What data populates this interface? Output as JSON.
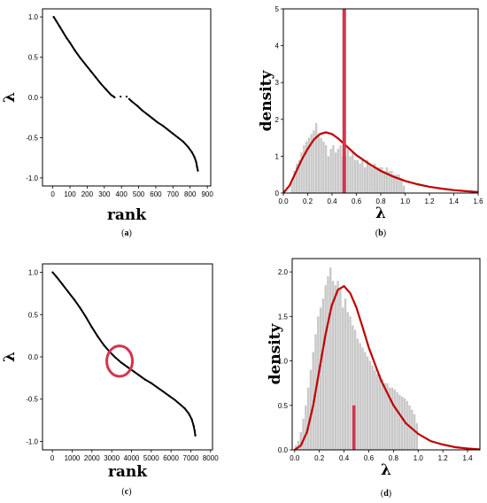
{
  "chart_data": [
    {
      "id": "a",
      "type": "scatter",
      "caption_letter": "a",
      "xlabel": "rank",
      "ylabel": "λ",
      "xlim": [
        -60,
        920
      ],
      "ylim": [
        -1.1,
        1.1
      ],
      "xticks": [
        0,
        100,
        200,
        300,
        400,
        500,
        600,
        700,
        800,
        900
      ],
      "yticks": [
        1.0,
        0.5,
        0.0,
        -0.5,
        -1.0
      ],
      "ytick_labels": [
        "1.0",
        "0.5",
        "0.0",
        "-0.5",
        "-1.0"
      ],
      "series": [
        {
          "x": [
            5,
            20,
            40,
            60,
            80,
            100,
            130,
            160,
            190,
            220,
            250,
            280,
            310,
            340,
            355,
            360
          ],
          "y": [
            1.0,
            0.95,
            0.88,
            0.81,
            0.74,
            0.68,
            0.58,
            0.49,
            0.41,
            0.33,
            0.25,
            0.17,
            0.1,
            0.03,
            0.01,
            0.0
          ]
        },
        {
          "x": [
            395,
            430
          ],
          "y": [
            0.01,
            0.01
          ]
        },
        {
          "x": [
            445,
            460,
            490,
            520,
            550,
            580,
            610,
            640,
            670,
            700,
            730,
            760,
            790,
            810,
            825,
            835,
            840,
            845
          ],
          "y": [
            -0.02,
            -0.05,
            -0.1,
            -0.16,
            -0.21,
            -0.26,
            -0.31,
            -0.35,
            -0.4,
            -0.45,
            -0.5,
            -0.55,
            -0.62,
            -0.68,
            -0.74,
            -0.8,
            -0.86,
            -0.91
          ]
        }
      ]
    },
    {
      "id": "b",
      "type": "bar",
      "caption_letter": "b",
      "xlabel": "λ",
      "ylabel": "density",
      "xlim": [
        0,
        1.6
      ],
      "ylim": [
        0,
        5
      ],
      "xticks": [
        0.0,
        0.2,
        0.4,
        0.6,
        0.8,
        1.0,
        1.2,
        1.4,
        1.6
      ],
      "xtick_labels": [
        "0.0",
        "0.2",
        "0.4",
        "0.6",
        "0.8",
        "1.0",
        "1.2",
        "1.4",
        "1.6"
      ],
      "yticks": [
        0,
        1,
        2,
        3,
        4,
        5
      ],
      "ytick_labels": [
        "0",
        "1",
        "2",
        "3",
        "4",
        "5"
      ],
      "bin_width": 0.02,
      "bins": [
        0.07,
        0.09,
        0.11,
        0.13,
        0.15,
        0.17,
        0.19,
        0.21,
        0.23,
        0.25,
        0.27,
        0.29,
        0.31,
        0.33,
        0.35,
        0.37,
        0.39,
        0.41,
        0.43,
        0.45,
        0.47,
        0.49,
        0.51,
        0.53,
        0.55,
        0.57,
        0.59,
        0.61,
        0.63,
        0.65,
        0.67,
        0.69,
        0.71,
        0.73,
        0.75,
        0.77,
        0.79,
        0.81,
        0.83,
        0.85,
        0.87,
        0.89,
        0.91,
        0.93,
        0.95,
        0.97,
        0.99
      ],
      "densities": [
        0.3,
        0.6,
        0.8,
        0.9,
        1.1,
        1.3,
        1.4,
        1.5,
        1.6,
        1.7,
        1.9,
        1.6,
        1.5,
        1.4,
        1.3,
        1.0,
        1.2,
        1.3,
        1.1,
        1.2,
        1.3,
        1.0,
        1.0,
        1.2,
        1.0,
        1.1,
        0.9,
        0.9,
        0.8,
        0.9,
        0.7,
        0.9,
        0.8,
        0.7,
        0.8,
        0.7,
        0.7,
        0.7,
        0.6,
        0.7,
        0.6,
        0.6,
        0.5,
        0.5,
        0.5,
        0.4,
        0.2
      ],
      "curve": {
        "x": [
          0.0,
          0.05,
          0.1,
          0.15,
          0.2,
          0.25,
          0.3,
          0.35,
          0.4,
          0.45,
          0.5,
          0.55,
          0.6,
          0.7,
          0.8,
          0.9,
          1.0,
          1.1,
          1.2,
          1.3,
          1.4,
          1.5,
          1.6
        ],
        "y": [
          0.0,
          0.2,
          0.55,
          0.9,
          1.2,
          1.45,
          1.6,
          1.65,
          1.6,
          1.48,
          1.33,
          1.18,
          1.03,
          0.8,
          0.6,
          0.45,
          0.33,
          0.24,
          0.17,
          0.12,
          0.08,
          0.05,
          0.03
        ]
      },
      "marker": {
        "x": 0.5,
        "height": 5.0
      },
      "colors": {
        "bars": "#c8c8c8",
        "curve": "#c00000",
        "marker": "#d4344f"
      }
    },
    {
      "id": "c",
      "type": "scatter",
      "caption_letter": "c",
      "xlabel": "rank",
      "ylabel": "λ",
      "xlim": [
        -500,
        8100
      ],
      "ylim": [
        -1.1,
        1.1
      ],
      "xticks": [
        0,
        1000,
        2000,
        3000,
        4000,
        5000,
        6000,
        7000,
        8000
      ],
      "yticks": [
        1.0,
        0.5,
        0.0,
        -0.5,
        -1.0
      ],
      "ytick_labels": [
        "1.0",
        "0.5",
        "0.0",
        "-0.5",
        "-1.0"
      ],
      "series": [
        {
          "x": [
            10,
            200,
            500,
            800,
            1100,
            1400,
            1700,
            2000,
            2300,
            2600,
            2900,
            3200,
            3500,
            3800,
            4100,
            4400,
            4700,
            5000,
            5300,
            5600,
            5900,
            6200,
            6500,
            6700,
            6900,
            7050,
            7150,
            7200,
            7230
          ],
          "y": [
            1.0,
            0.95,
            0.86,
            0.77,
            0.68,
            0.58,
            0.47,
            0.35,
            0.24,
            0.14,
            0.06,
            -0.01,
            -0.07,
            -0.12,
            -0.17,
            -0.22,
            -0.27,
            -0.31,
            -0.36,
            -0.41,
            -0.46,
            -0.51,
            -0.57,
            -0.61,
            -0.67,
            -0.74,
            -0.82,
            -0.88,
            -0.93
          ]
        }
      ],
      "highlight_circle": {
        "x": 3400,
        "y": -0.05,
        "rx": 650,
        "ry": 0.18
      },
      "colors": {
        "circle": "#d4344f"
      }
    },
    {
      "id": "d",
      "type": "bar",
      "caption_letter": "d",
      "xlabel": "λ",
      "ylabel": "density",
      "xlim": [
        -0.02,
        1.5
      ],
      "ylim": [
        0,
        2.15
      ],
      "xticks": [
        0.0,
        0.2,
        0.4,
        0.6,
        0.8,
        1.0,
        1.2,
        1.4
      ],
      "xtick_labels": [
        "0.0",
        "0.2",
        "0.4",
        "0.6",
        "0.8",
        "1.0",
        "1.2",
        "1.4"
      ],
      "yticks": [
        0.0,
        0.5,
        1.0,
        1.5,
        2.0
      ],
      "ytick_labels": [
        "0.0",
        "0.5",
        "1.0",
        "1.5",
        "2.0"
      ],
      "bin_width": 0.02,
      "bins": [
        0.01,
        0.03,
        0.05,
        0.07,
        0.09,
        0.11,
        0.13,
        0.15,
        0.17,
        0.19,
        0.21,
        0.23,
        0.25,
        0.27,
        0.29,
        0.31,
        0.33,
        0.35,
        0.37,
        0.39,
        0.41,
        0.43,
        0.45,
        0.47,
        0.49,
        0.51,
        0.53,
        0.55,
        0.57,
        0.59,
        0.61,
        0.63,
        0.65,
        0.67,
        0.69,
        0.71,
        0.73,
        0.75,
        0.77,
        0.79,
        0.81,
        0.83,
        0.85,
        0.87,
        0.89,
        0.91,
        0.93,
        0.95,
        0.97,
        0.99
      ],
      "densities": [
        0.05,
        0.1,
        0.2,
        0.35,
        0.5,
        0.7,
        0.9,
        1.1,
        1.3,
        1.5,
        1.6,
        1.7,
        1.85,
        1.95,
        2.05,
        1.9,
        1.85,
        1.9,
        1.8,
        1.6,
        1.7,
        1.55,
        1.5,
        1.4,
        1.35,
        1.25,
        1.2,
        1.15,
        1.1,
        1.05,
        1.0,
        0.95,
        0.9,
        0.85,
        0.85,
        0.8,
        0.75,
        0.75,
        0.7,
        0.7,
        0.68,
        0.65,
        0.62,
        0.6,
        0.58,
        0.55,
        0.5,
        0.45,
        0.4,
        0.3
      ],
      "curve": {
        "x": [
          0.0,
          0.05,
          0.1,
          0.15,
          0.2,
          0.25,
          0.3,
          0.35,
          0.4,
          0.45,
          0.5,
          0.55,
          0.6,
          0.7,
          0.8,
          0.9,
          1.0,
          1.1,
          1.2,
          1.3,
          1.4,
          1.5
        ],
        "y": [
          0.0,
          0.05,
          0.2,
          0.5,
          0.9,
          1.3,
          1.62,
          1.8,
          1.84,
          1.76,
          1.6,
          1.38,
          1.15,
          0.78,
          0.5,
          0.3,
          0.18,
          0.1,
          0.06,
          0.03,
          0.015,
          0.005
        ]
      },
      "marker": {
        "x": 0.48,
        "height": 0.5
      },
      "colors": {
        "bars": "#c8c8c8",
        "curve": "#c00000",
        "marker": "#d4344f"
      }
    }
  ]
}
